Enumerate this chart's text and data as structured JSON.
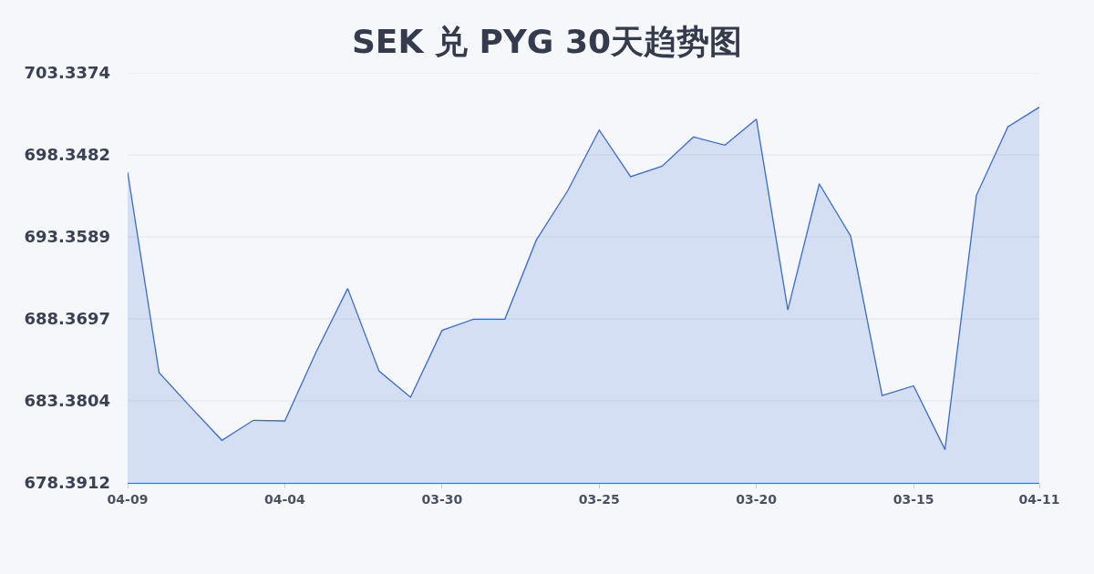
{
  "chart_data": {
    "type": "area",
    "title": "SEK 兑 PYG 30天趋势图",
    "categories": [
      "04-09",
      null,
      null,
      null,
      null,
      "04-04",
      null,
      null,
      null,
      null,
      "03-30",
      null,
      null,
      null,
      null,
      "03-25",
      null,
      null,
      null,
      null,
      "03-20",
      null,
      null,
      null,
      null,
      "03-15",
      null,
      null,
      null,
      "04-11"
    ],
    "series": [
      {
        "color": "#3a6bd1",
        "values": [
          697.29,
          685.1,
          683.01,
          680.98,
          682.2,
          682.16,
          686.37,
          690.22,
          685.19,
          683.6,
          687.67,
          688.35,
          688.35,
          693.17,
          696.17,
          699.86,
          697.02,
          697.66,
          699.44,
          698.94,
          700.53,
          688.92,
          696.59,
          693.41,
          683.71,
          684.3,
          680.42,
          695.89,
          700.06,
          701.25
        ]
      }
    ],
    "ylim": [
      678.3912,
      703.3374
    ],
    "yticks": [
      678.3912,
      683.3804,
      688.3697,
      693.3589,
      698.3482,
      703.3374
    ],
    "grid": "y",
    "line_style": "solid"
  }
}
